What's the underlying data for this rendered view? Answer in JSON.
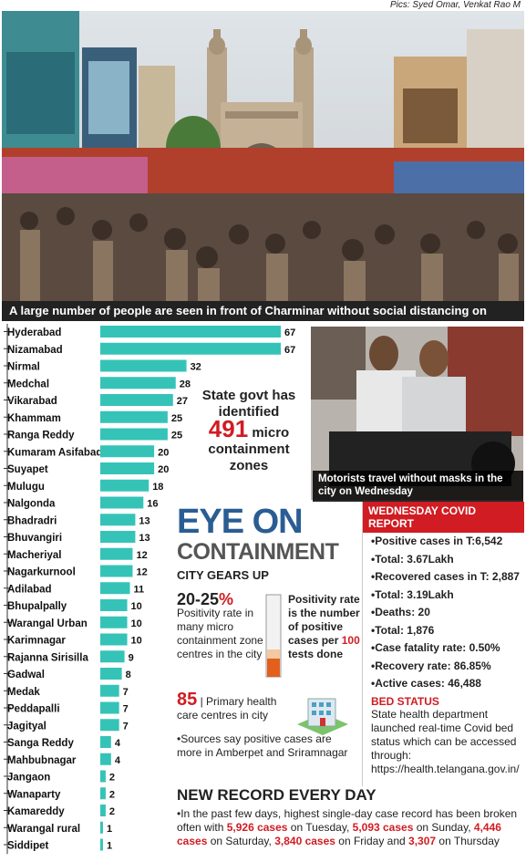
{
  "credit": "Pics: Syed Omar, Venkat Rao M",
  "photo1_caption": "A large number of people are seen in front of Charminar without social distancing on Wednesday",
  "chart_data": {
    "type": "bar",
    "orientation": "horizontal",
    "categories": [
      "Hyderabad",
      "Nizamabad",
      "Nirmal",
      "Medchal",
      "Vikarabad",
      "Khammam",
      "Ranga Reddy",
      "Kumaram Asifabad",
      "Suyapet",
      "Mulugu",
      "Nalgonda",
      "Bhadradri",
      "Bhuvangiri",
      "Macheriyal",
      "Nagarkurnool",
      "Adilabad",
      "Bhupalpally",
      "Warangal Urban",
      "Karimnagar",
      "Rajanna Sirisilla",
      "Gadwal",
      "Medak",
      "Peddapalli",
      "Jagityal",
      "Sanga Reddy",
      "Mahbubnagar",
      "Jangaon",
      "Wanaparty",
      "Kamareddy",
      "Warangal rural",
      "Siddipet"
    ],
    "values": [
      67,
      67,
      32,
      28,
      27,
      25,
      25,
      20,
      20,
      18,
      16,
      13,
      13,
      12,
      12,
      11,
      10,
      10,
      10,
      9,
      8,
      7,
      7,
      7,
      4,
      4,
      2,
      2,
      2,
      1,
      1
    ],
    "color": "#35c3b8",
    "xlim": [
      0,
      67
    ]
  },
  "govt": {
    "line1": "State govt has",
    "line2": "identified",
    "number": "491",
    "line3": "micro",
    "line4": "containment",
    "line5": "zones"
  },
  "photo2_caption": "Motorists travel without masks in the city on Wednesday",
  "eye": {
    "title1": "EYE ON",
    "title2": "CONTAINMENT",
    "subtitle": "CITY GEARS UP",
    "pct_value": "20-25",
    "pct_unit": "%",
    "pct_text": "Positivity rate in many micro containment zone centres in the city",
    "def_text1": "Positivity rate is the number of positive cases per",
    "def_red": "100",
    "def_text2": "tests done",
    "phc_num": "85",
    "phc_text": "| Primary health care centres in city",
    "sources": "Sources say positive cases are more in Amberpet and Sriramnagar"
  },
  "report": {
    "header": "WEDNESDAY COVID REPORT",
    "items": [
      "Positive cases in T:6,542",
      "Total: 3.67Lakh",
      "Recovered cases in T: 2,887",
      "Total: 3.19Lakh",
      "Deaths: 20",
      "Total: 1,876",
      "Case fatality rate: 0.50%",
      "Recovery rate: 86.85%",
      "Active cases: 46,488"
    ],
    "bed_title": "BED STATUS",
    "bed_text": "State health department launched real-time Covid bed status which can be accessed through: https://health.telangana.gov.in/"
  },
  "newrecord": {
    "heading": "NEW RECORD EVERY DAY",
    "t1": "In the past few days, highest single-day case record has been broken often with",
    "c1": "5,926 cases",
    "t2": "on Tuesday,",
    "c2": "5,093 cases",
    "t3": "on Sunday,",
    "c3": "4,446 cases",
    "t4": "on Saturday,",
    "c4": "3,840 cases",
    "t5": "on Friday and",
    "c5": "3,307",
    "t6": "on Thursday"
  }
}
